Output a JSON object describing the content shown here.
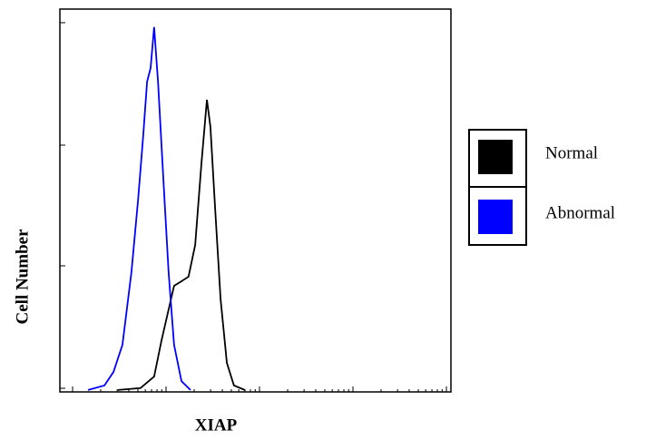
{
  "chart_data": {
    "type": "line",
    "x_label": "XIAP",
    "y_label": "Cell Number",
    "xlim": [
      0,
      100
    ],
    "ylim": [
      0,
      100
    ],
    "series": [
      {
        "name": "Normal",
        "color": "#000000",
        "x": [
          14.8,
          20.6,
          24.1,
          26.0,
          27.6,
          29.2,
          31.1,
          32.9,
          34.6,
          36.2,
          37.6,
          38.5,
          39.7,
          41.1,
          42.7,
          44.5,
          47.3
        ],
        "values": [
          0.5,
          1.0,
          4.0,
          13.5,
          20.6,
          27.7,
          28.9,
          30.1,
          38.4,
          59.7,
          76.3,
          69.2,
          47.9,
          24.2,
          7.6,
          1.7,
          0.5
        ]
      },
      {
        "name": "Abnormal",
        "color": "#0000ff",
        "x": [
          7.2,
          11.4,
          13.7,
          16.0,
          18.3,
          20.0,
          21.3,
          22.3,
          23.2,
          24.1,
          25.1,
          26.5,
          27.8,
          29.2,
          31.1,
          33.4
        ],
        "values": [
          0.5,
          1.7,
          5.2,
          12.3,
          31.3,
          50.2,
          66.8,
          81.0,
          84.6,
          95.3,
          81.0,
          54.9,
          31.3,
          12.3,
          2.8,
          0.5
        ]
      }
    ]
  }
}
